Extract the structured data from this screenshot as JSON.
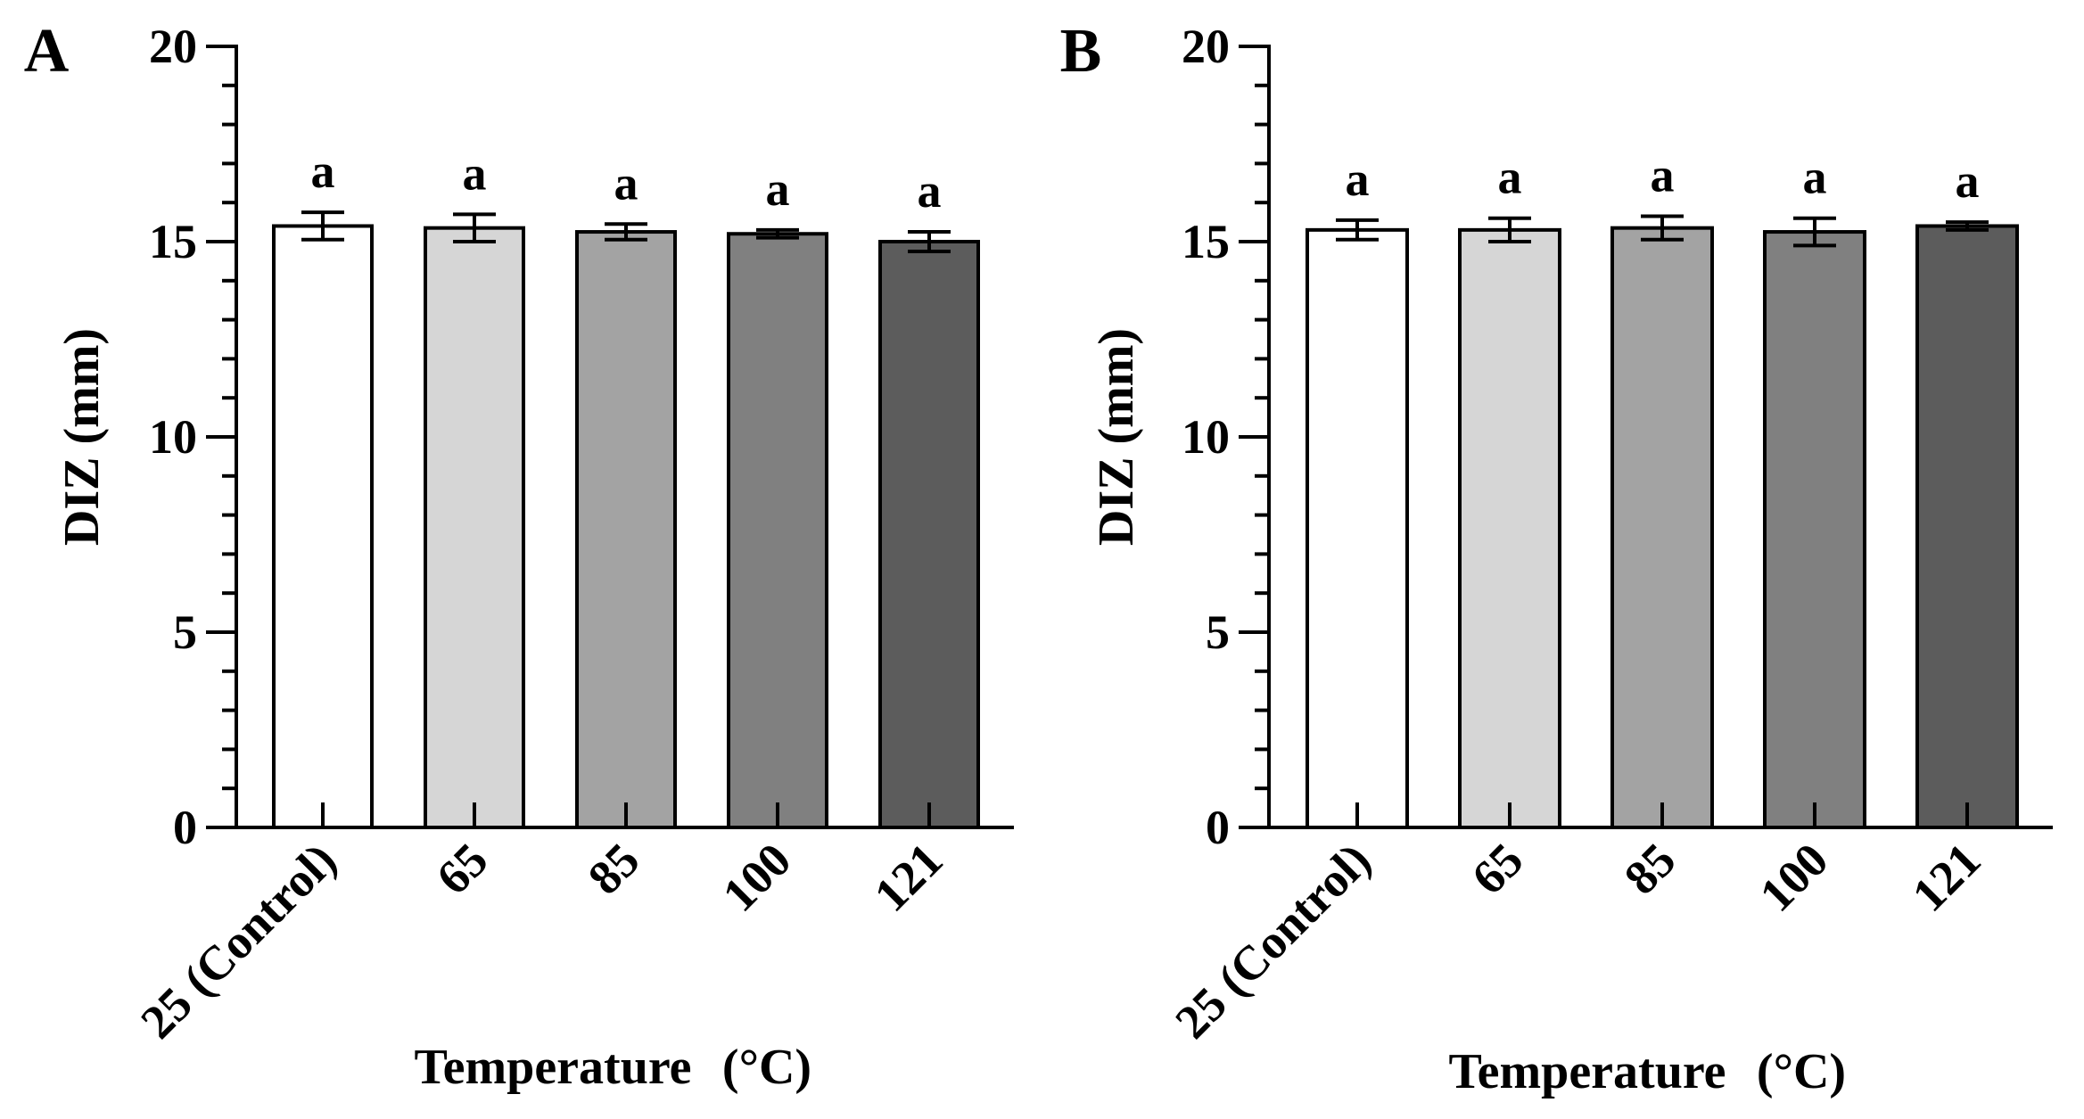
{
  "chart_data": [
    {
      "type": "bar",
      "panel_label": "A",
      "categories": [
        "25 (Control)",
        "65",
        "85",
        "100",
        "121"
      ],
      "values": [
        15.4,
        15.35,
        15.25,
        15.2,
        15.0
      ],
      "errors": [
        0.35,
        0.35,
        0.2,
        0.1,
        0.25
      ],
      "significance": [
        "a",
        "a",
        "a",
        "a",
        "a"
      ],
      "colors": [
        "#ffffff",
        "#d6d6d6",
        "#a3a3a3",
        "#808080",
        "#5c5c5c"
      ],
      "xlabel": "Temperature",
      "xunit": "(°C)",
      "ylabel": "DIZ (mm)",
      "ylim": [
        0,
        20
      ],
      "yticks": [
        "0",
        "5",
        "10",
        "15",
        "20"
      ],
      "grid": false,
      "legend": "none"
    },
    {
      "type": "bar",
      "panel_label": "B",
      "categories": [
        "25 (Control)",
        "65",
        "85",
        "100",
        "121"
      ],
      "values": [
        15.3,
        15.3,
        15.35,
        15.25,
        15.4
      ],
      "errors": [
        0.25,
        0.3,
        0.3,
        0.35,
        0.1
      ],
      "significance": [
        "a",
        "a",
        "a",
        "a",
        "a"
      ],
      "colors": [
        "#ffffff",
        "#d6d6d6",
        "#a3a3a3",
        "#808080",
        "#5c5c5c"
      ],
      "xlabel": "Temperature",
      "xunit": "(°C)",
      "ylabel": "DIZ (mm)",
      "ylim": [
        0,
        20
      ],
      "yticks": [
        "0",
        "5",
        "10",
        "15",
        "20"
      ],
      "grid": false,
      "legend": "none"
    }
  ]
}
